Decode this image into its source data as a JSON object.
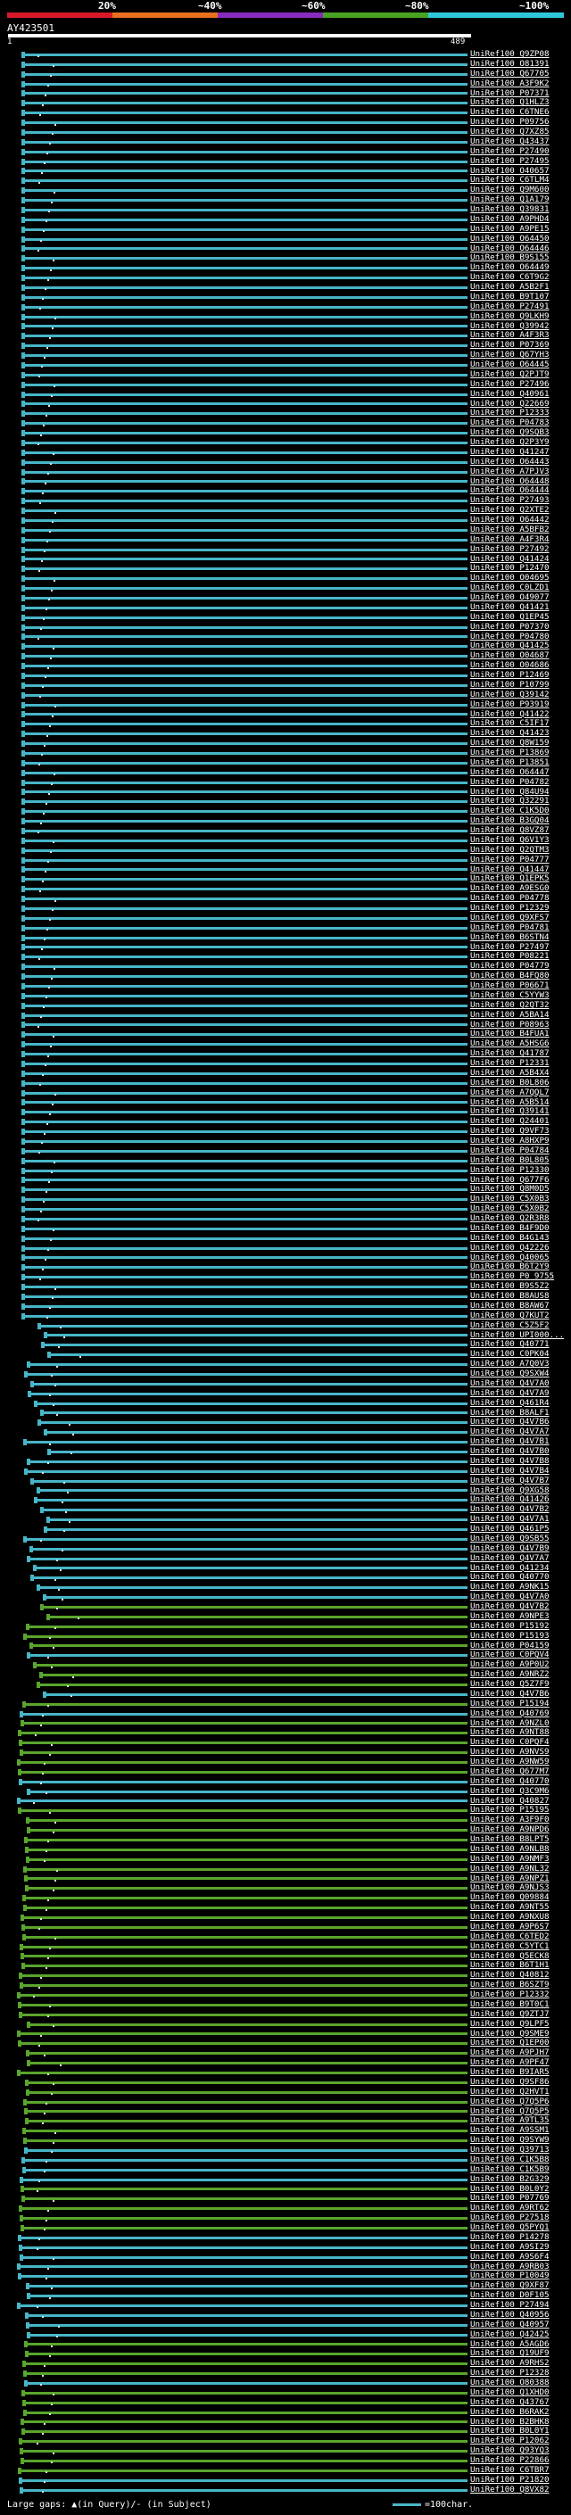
{
  "legend": {
    "labels": [
      "20%",
      "~40%",
      "~60%",
      "~80%",
      "~100%"
    ],
    "colors": [
      "#d9182a",
      "#e8701f",
      "#8a2bbf",
      "#47a321",
      "#2ec8dc"
    ]
  },
  "query": {
    "name": "AY423501",
    "start": "1",
    "end": "489"
  },
  "footer": {
    "gaps_text": "Large gaps: ▲(in Query)/- (in Subject)",
    "scale_text": "=100char."
  },
  "colors": {
    "cyan": "#47b6c8",
    "green": "#5aa52c",
    "row_bg": "#070714"
  },
  "hits": [
    {
      "label": "UniRef100_Q9ZP08",
      "c": "c"
    },
    {
      "label": "UniRef100_O81391",
      "c": "c"
    },
    {
      "label": "UniRef100_Q67705",
      "c": "c"
    },
    {
      "label": "UniRef100_A3F9K2",
      "c": "c"
    },
    {
      "label": "UniRef100_P07371",
      "c": "c"
    },
    {
      "label": "UniRef100_Q1HLZ3",
      "c": "c"
    },
    {
      "label": "UniRef100_C6TNE6",
      "c": "c"
    },
    {
      "label": "UniRef100_P09756",
      "c": "c"
    },
    {
      "label": "UniRef100_Q7XZ85",
      "c": "c"
    },
    {
      "label": "UniRef100_Q43437",
      "c": "c"
    },
    {
      "label": "UniRef100_P27490",
      "c": "c"
    },
    {
      "label": "UniRef100_P27495",
      "c": "c"
    },
    {
      "label": "UniRef100_O40657",
      "c": "c"
    },
    {
      "label": "UniRef100_C6TLM4",
      "c": "c"
    },
    {
      "label": "UniRef100_Q9M600",
      "c": "c"
    },
    {
      "label": "UniRef100_Q1A179",
      "c": "c"
    },
    {
      "label": "UniRef100_Q39831",
      "c": "c"
    },
    {
      "label": "UniRef100_A9PHD4",
      "c": "c"
    },
    {
      "label": "UniRef100_A9PE15",
      "c": "c"
    },
    {
      "label": "UniRef100_O64450",
      "c": "c"
    },
    {
      "label": "UniRef100_O64446",
      "c": "c"
    },
    {
      "label": "UniRef100_B9S155",
      "c": "c"
    },
    {
      "label": "UniRef100_O64449",
      "c": "c"
    },
    {
      "label": "UniRef100_C6T9G2",
      "c": "c"
    },
    {
      "label": "UniRef100_A5B2F1",
      "c": "c"
    },
    {
      "label": "UniRef100_B9T107",
      "c": "c"
    },
    {
      "label": "UniRef100_P27491",
      "c": "c"
    },
    {
      "label": "UniRef100_Q9LKH9",
      "c": "c"
    },
    {
      "label": "UniRef100_Q39942",
      "c": "c"
    },
    {
      "label": "UniRef100_A4F3R3",
      "c": "c"
    },
    {
      "label": "UniRef100_P07369",
      "c": "c"
    },
    {
      "label": "UniRef100_Q67YH3",
      "c": "c"
    },
    {
      "label": "UniRef100_O64445",
      "c": "c"
    },
    {
      "label": "UniRef100_Q2PJT9",
      "c": "c"
    },
    {
      "label": "UniRef100_P27496",
      "c": "c"
    },
    {
      "label": "UniRef100_Q40961",
      "c": "c"
    },
    {
      "label": "UniRef100_Q22669",
      "c": "c"
    },
    {
      "label": "UniRef100_P12333",
      "c": "c"
    },
    {
      "label": "UniRef100_P04783",
      "c": "c"
    },
    {
      "label": "UniRef100_Q9SQB3",
      "c": "c"
    },
    {
      "label": "UniRef100_Q2P3Y9",
      "c": "c"
    },
    {
      "label": "UniRef100_Q41247",
      "c": "c"
    },
    {
      "label": "UniRef100_O64443",
      "c": "c"
    },
    {
      "label": "UniRef100_A7PJV3",
      "c": "c"
    },
    {
      "label": "UniRef100_O64448",
      "c": "c"
    },
    {
      "label": "UniRef100_O64444",
      "c": "c"
    },
    {
      "label": "UniRef100_P27493",
      "c": "c"
    },
    {
      "label": "UniRef100_Q2XTE2",
      "c": "c"
    },
    {
      "label": "UniRef100_O64442",
      "c": "c"
    },
    {
      "label": "UniRef100_A5BFB2",
      "c": "c"
    },
    {
      "label": "UniRef100_A4F3R4",
      "c": "c"
    },
    {
      "label": "UniRef100_P27492",
      "c": "c"
    },
    {
      "label": "UniRef100_Q41424",
      "c": "c"
    },
    {
      "label": "UniRef100_P12470",
      "c": "c"
    },
    {
      "label": "UniRef100_O04695",
      "c": "c"
    },
    {
      "label": "UniRef100_C0LZD1",
      "c": "c"
    },
    {
      "label": "UniRef100_O49077",
      "c": "c"
    },
    {
      "label": "UniRef100_Q41421",
      "c": "c"
    },
    {
      "label": "UniRef100_Q1EP45",
      "c": "c"
    },
    {
      "label": "UniRef100_P07370",
      "c": "c"
    },
    {
      "label": "UniRef100_P04780",
      "c": "c"
    },
    {
      "label": "UniRef100_Q41425",
      "c": "c"
    },
    {
      "label": "UniRef100_O04687",
      "c": "c"
    },
    {
      "label": "UniRef100_O04686",
      "c": "c"
    },
    {
      "label": "UniRef100_P12469",
      "c": "c"
    },
    {
      "label": "UniRef100_P10799",
      "c": "c"
    },
    {
      "label": "UniRef100_Q39142",
      "c": "c"
    },
    {
      "label": "UniRef100_P93919",
      "c": "c"
    },
    {
      "label": "UniRef100_Q41422",
      "c": "c"
    },
    {
      "label": "UniRef100_C5IF17",
      "c": "c"
    },
    {
      "label": "UniRef100_Q41423",
      "c": "c"
    },
    {
      "label": "UniRef100_Q8W159",
      "c": "c"
    },
    {
      "label": "UniRef100_P13869",
      "c": "c"
    },
    {
      "label": "UniRef100_P13851",
      "c": "c"
    },
    {
      "label": "UniRef100_O64447",
      "c": "c"
    },
    {
      "label": "UniRef100_P04782",
      "c": "c"
    },
    {
      "label": "UniRef100_Q84U94",
      "c": "c"
    },
    {
      "label": "UniRef100_Q32291",
      "c": "c"
    },
    {
      "label": "UniRef100_C1K5D0",
      "c": "c"
    },
    {
      "label": "UniRef100_B3GQ04",
      "c": "c"
    },
    {
      "label": "UniRef100_Q8VZ87",
      "c": "c"
    },
    {
      "label": "UniRef100_Q6V1Y3",
      "c": "c"
    },
    {
      "label": "UniRef100_Q2QTM3",
      "c": "c"
    },
    {
      "label": "UniRef100_P04777",
      "c": "c"
    },
    {
      "label": "UniRef100_Q41447",
      "c": "c"
    },
    {
      "label": "UniRef100_Q1EPK5",
      "c": "c"
    },
    {
      "label": "UniRef100_A9ESG0",
      "c": "c"
    },
    {
      "label": "UniRef100_P04778",
      "c": "c"
    },
    {
      "label": "UniRef100_P12329",
      "c": "c"
    },
    {
      "label": "UniRef100_Q9XFS7",
      "c": "c"
    },
    {
      "label": "UniRef100_P04781",
      "c": "c"
    },
    {
      "label": "UniRef100_B6STN4",
      "c": "c"
    },
    {
      "label": "UniRef100_P27497",
      "c": "c"
    },
    {
      "label": "UniRef100_P08221",
      "c": "c"
    },
    {
      "label": "UniRef100_P04779",
      "c": "c"
    },
    {
      "label": "UniRef100_B4FQ80",
      "c": "c"
    },
    {
      "label": "UniRef100_P06671",
      "c": "c"
    },
    {
      "label": "UniRef100_C5YYW3",
      "c": "c"
    },
    {
      "label": "UniRef100_Q2QT32",
      "c": "c"
    },
    {
      "label": "UniRef100_A5BA14",
      "c": "c"
    },
    {
      "label": "UniRef100_P08963",
      "c": "c"
    },
    {
      "label": "UniRef100_B4FUA1",
      "c": "c"
    },
    {
      "label": "UniRef100_A5HSG6",
      "c": "c"
    },
    {
      "label": "UniRef100_Q41787",
      "c": "c"
    },
    {
      "label": "UniRef100_P12331",
      "c": "c"
    },
    {
      "label": "UniRef100_A5B4X4",
      "c": "c"
    },
    {
      "label": "UniRef100_B0L806",
      "c": "c"
    },
    {
      "label": "UniRef100_A7QQL7",
      "c": "c"
    },
    {
      "label": "UniRef100_A5B514",
      "c": "c"
    },
    {
      "label": "UniRef100_Q39141",
      "c": "c"
    },
    {
      "label": "UniRef100_Q24401",
      "c": "c"
    },
    {
      "label": "UniRef100_Q9VF73",
      "c": "c"
    },
    {
      "label": "UniRef100_A8HXP9",
      "c": "c"
    },
    {
      "label": "UniRef100_P04784",
      "c": "c"
    },
    {
      "label": "UniRef100_B0L805",
      "c": "c"
    },
    {
      "label": "UniRef100_P12330",
      "c": "c"
    },
    {
      "label": "UniRef100_Q677F6",
      "c": "c"
    },
    {
      "label": "UniRef100_Q8M0D5",
      "c": "c"
    },
    {
      "label": "UniRef100_C5X0B3",
      "c": "c"
    },
    {
      "label": "UniRef100_C5X0B2",
      "c": "c"
    },
    {
      "label": "UniRef100_Q2R3R8",
      "c": "c"
    },
    {
      "label": "UniRef100_B4F9D0",
      "c": "c"
    },
    {
      "label": "UniRef100_B4G143",
      "c": "c"
    },
    {
      "label": "UniRef100_Q42226",
      "c": "c"
    },
    {
      "label": "UniRef100_Q40065",
      "c": "c"
    },
    {
      "label": "UniRef100_B6T2Y9",
      "c": "c"
    },
    {
      "label": "UniRef100_P0_9755",
      "c": "c"
    },
    {
      "label": "UniRef100_B9S5Z2",
      "c": "c"
    },
    {
      "label": "UniRef100_B8AUS8",
      "c": "c"
    },
    {
      "label": "UniRef100_B8AW67",
      "c": "c"
    },
    {
      "label": "UniRef100_Q7KUT2",
      "c": "c"
    },
    {
      "label": "UniRef100_C5Z5F2",
      "c": "c"
    },
    {
      "label": "UniRef100_UPI000...",
      "c": "c"
    },
    {
      "label": "UniRef100_Q40771",
      "c": "c"
    },
    {
      "label": "UniRef100_C0PK04",
      "c": "c"
    },
    {
      "label": "UniRef100_A7Q0V3",
      "c": "c"
    },
    {
      "label": "UniRef100_Q9SXW4",
      "c": "c"
    },
    {
      "label": "UniRef100_Q4V7A0",
      "c": "c"
    },
    {
      "label": "UniRef100_Q4V7A9",
      "c": "c"
    },
    {
      "label": "UniRef100_Q461R4",
      "c": "c"
    },
    {
      "label": "UniRef100_B8ALF1",
      "c": "c"
    },
    {
      "label": "UniRef100_Q4V7B6",
      "c": "c"
    },
    {
      "label": "UniRef100_Q4V7A7",
      "c": "c"
    },
    {
      "label": "UniRef100_Q4V7B1",
      "c": "c"
    },
    {
      "label": "UniRef100_Q4V7B0",
      "c": "c"
    },
    {
      "label": "UniRef100_Q4V7B8",
      "c": "c"
    },
    {
      "label": "UniRef100_Q4V7B4",
      "c": "c"
    },
    {
      "label": "UniRef100_Q4V7B7",
      "c": "c"
    },
    {
      "label": "UniRef100_Q9XG58",
      "c": "c"
    },
    {
      "label": "UniRef100_Q41426",
      "c": "c"
    },
    {
      "label": "UniRef100_Q4V7B2",
      "c": "c"
    },
    {
      "label": "UniRef100_Q4V7A1",
      "c": "c"
    },
    {
      "label": "UniRef100_Q461P5",
      "c": "c"
    },
    {
      "label": "UniRef100_Q9SB55",
      "c": "c"
    },
    {
      "label": "UniRef100_Q4V7B9",
      "c": "c"
    },
    {
      "label": "UniRef100_Q4V7A7",
      "c": "c"
    },
    {
      "label": "UniRef100_Q41234",
      "c": "c"
    },
    {
      "label": "UniRef100_Q40770",
      "c": "c"
    },
    {
      "label": "UniRef100_A9NK15",
      "c": "c"
    },
    {
      "label": "UniRef100_Q4V7A0",
      "c": "c"
    },
    {
      "label": "UniRef100_Q4V7B2",
      "c": "g"
    },
    {
      "label": "UniRef100_A9NPE3",
      "c": "g"
    },
    {
      "label": "UniRef100_P15192",
      "c": "g"
    },
    {
      "label": "UniRef100_P15193",
      "c": "g"
    },
    {
      "label": "UniRef100_P04159",
      "c": "g"
    },
    {
      "label": "UniRef100_C0PQV4",
      "c": "c"
    },
    {
      "label": "UniRef100_A9P0U2",
      "c": "g"
    },
    {
      "label": "UniRef100_A9NRZ2",
      "c": "g"
    },
    {
      "label": "UniRef100_Q5Z7F9",
      "c": "g"
    },
    {
      "label": "UniRef100_Q4V7B6",
      "c": "c"
    },
    {
      "label": "UniRef100_P15194",
      "c": "g"
    },
    {
      "label": "UniRef100_Q40769",
      "c": "c"
    },
    {
      "label": "UniRef100_A9NZL0",
      "c": "g"
    },
    {
      "label": "UniRef100_A9NT88",
      "c": "g"
    },
    {
      "label": "UniRef100_C0PQF4",
      "c": "g"
    },
    {
      "label": "UniRef100_A9NVS9",
      "c": "g"
    },
    {
      "label": "UniRef100_A9NW59",
      "c": "g"
    },
    {
      "label": "UniRef100_Q677M7",
      "c": "g"
    },
    {
      "label": "UniRef100_Q40770",
      "c": "c"
    },
    {
      "label": "UniRef100_Q3C9M6",
      "c": "c"
    },
    {
      "label": "UniRef100_Q40827",
      "c": "c"
    },
    {
      "label": "UniRef100_P15195",
      "c": "g"
    },
    {
      "label": "UniRef100_A3F9F0",
      "c": "g"
    },
    {
      "label": "UniRef100_A9NPD6",
      "c": "g"
    },
    {
      "label": "UniRef100_B8LPT5",
      "c": "g"
    },
    {
      "label": "UniRef100_A9NLB8",
      "c": "g"
    },
    {
      "label": "UniRef100_A9NMF3",
      "c": "g"
    },
    {
      "label": "UniRef100_A9NL32",
      "c": "g"
    },
    {
      "label": "UniRef100_A9NPZ1",
      "c": "g"
    },
    {
      "label": "UniRef100_A9NJS3",
      "c": "g"
    },
    {
      "label": "UniRef100_Q09884",
      "c": "g"
    },
    {
      "label": "UniRef100_A9NT55",
      "c": "g"
    },
    {
      "label": "UniRef100_A9NXU8",
      "c": "g"
    },
    {
      "label": "UniRef100_A9P6S7",
      "c": "g"
    },
    {
      "label": "UniRef100_C6TED2",
      "c": "g"
    },
    {
      "label": "UniRef100_C5YTC1",
      "c": "g"
    },
    {
      "label": "UniRef100_Q5ECK8",
      "c": "g"
    },
    {
      "label": "UniRef100_B6T1H1",
      "c": "g"
    },
    {
      "label": "UniRef100_Q40812",
      "c": "g"
    },
    {
      "label": "UniRef100_B6SZT9",
      "c": "g"
    },
    {
      "label": "UniRef100_P12332",
      "c": "g"
    },
    {
      "label": "UniRef100_B9T0C1",
      "c": "g"
    },
    {
      "label": "UniRef100_Q9ZTJ7",
      "c": "g"
    },
    {
      "label": "UniRef100_Q9LPF5",
      "c": "g"
    },
    {
      "label": "UniRef100_Q9SME9",
      "c": "g"
    },
    {
      "label": "UniRef100_Q1EP00",
      "c": "g"
    },
    {
      "label": "UniRef100_A9PJH7",
      "c": "g"
    },
    {
      "label": "UniRef100_A9PF47",
      "c": "g"
    },
    {
      "label": "UniRef100_B9IAR5",
      "c": "g"
    },
    {
      "label": "UniRef100_Q9SF86",
      "c": "g"
    },
    {
      "label": "UniRef100_Q2HVT1",
      "c": "g"
    },
    {
      "label": "UniRef100_Q7Q5P6",
      "c": "g"
    },
    {
      "label": "UniRef100_Q7Q5P5",
      "c": "g"
    },
    {
      "label": "UniRef100_A9TL35",
      "c": "g"
    },
    {
      "label": "UniRef100_A9SSM1",
      "c": "g"
    },
    {
      "label": "UniRef100_Q9SYW9",
      "c": "g"
    },
    {
      "label": "UniRef100_Q39713",
      "c": "c"
    },
    {
      "label": "UniRef100_C1K5B8",
      "c": "c"
    },
    {
      "label": "UniRef100_C1K5B9",
      "c": "c"
    },
    {
      "label": "UniRef100_B2G329",
      "c": "c"
    },
    {
      "label": "UniRef100_B0L0Y2",
      "c": "g"
    },
    {
      "label": "UniRef100_P07769",
      "c": "g"
    },
    {
      "label": "UniRef100_A9RT62",
      "c": "g"
    },
    {
      "label": "UniRef100_P27518",
      "c": "g"
    },
    {
      "label": "UniRef100_Q5PYQ1",
      "c": "g"
    },
    {
      "label": "UniRef100_P14278",
      "c": "c"
    },
    {
      "label": "UniRef100_A9SI29",
      "c": "c"
    },
    {
      "label": "UniRef100_A9S6F4",
      "c": "c"
    },
    {
      "label": "UniRef100_A9RB03",
      "c": "c"
    },
    {
      "label": "UniRef100_P10049",
      "c": "c"
    },
    {
      "label": "UniRef100_Q9XF87",
      "c": "c"
    },
    {
      "label": "UniRef100_D0F105",
      "c": "c"
    },
    {
      "label": "UniRef100_P27494",
      "c": "c"
    },
    {
      "label": "UniRef100_Q40956",
      "c": "c"
    },
    {
      "label": "UniRef100_Q40957",
      "c": "c"
    },
    {
      "label": "UniRef100_Q42425",
      "c": "c"
    },
    {
      "label": "UniRef100_A5AGD6",
      "c": "g"
    },
    {
      "label": "UniRef100_Q19UF9",
      "c": "g"
    },
    {
      "label": "UniRef100_A9RHS2",
      "c": "g"
    },
    {
      "label": "UniRef100_P12328",
      "c": "g"
    },
    {
      "label": "UniRef100_O80388",
      "c": "c"
    },
    {
      "label": "UniRef100_Q1XHD0",
      "c": "g"
    },
    {
      "label": "UniRef100_Q43767",
      "c": "g"
    },
    {
      "label": "UniRef100_B6RAK2",
      "c": "g"
    },
    {
      "label": "UniRef100_B2BHK8",
      "c": "g"
    },
    {
      "label": "UniRef100_B0L0Y1",
      "c": "g"
    },
    {
      "label": "UniRef100_P12062",
      "c": "g"
    },
    {
      "label": "UniRef100_Q93YQ3",
      "c": "g"
    },
    {
      "label": "UniRef100_P22866",
      "c": "g"
    },
    {
      "label": "UniRef100_C6TBR7",
      "c": "g"
    },
    {
      "label": "UniRef100_P21820",
      "c": "c"
    },
    {
      "label": "UniRef100_Q8VX82",
      "c": "c"
    }
  ]
}
